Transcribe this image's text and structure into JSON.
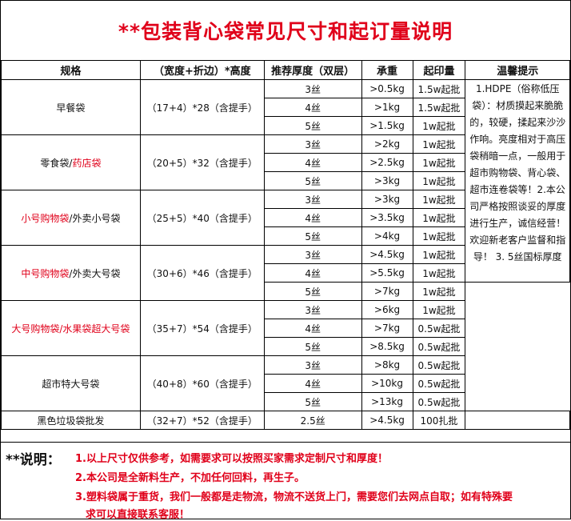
{
  "title": "**包装背心袋常见尺寸和起订量说明",
  "headers": [
    "规格",
    "（宽度+折边）*高度",
    "推荐厚度（双层）",
    "承重",
    "起印量",
    "温馨提示"
  ],
  "groups": [
    {
      "name": "早餐袋",
      "name_red": "",
      "name_tail": "",
      "size": "（17+4）*28（含提手）",
      "rows": [
        [
          "3丝",
          ">0.5kg",
          "1.5w起批"
        ],
        [
          "4丝",
          ">1kg",
          "1.5w起批"
        ],
        [
          "5丝",
          ">1.5kg",
          "1w起批"
        ]
      ]
    },
    {
      "name": "零食袋/",
      "name_red": "药店袋",
      "name_tail": "",
      "size": "（20+5）*32（含提手）",
      "rows": [
        [
          "3丝",
          ">2kg",
          "1w起批"
        ],
        [
          "4丝",
          ">2.5kg",
          "1w起批"
        ],
        [
          "5丝",
          ">3kg",
          "1w起批"
        ]
      ]
    },
    {
      "name": "",
      "name_red": "小号购物袋",
      "name_tail": "/外卖小号袋",
      "size": "（25+5）*40（含提手）",
      "rows": [
        [
          "3丝",
          ">3kg",
          "1w起批"
        ],
        [
          "4丝",
          ">3.5kg",
          "1w起批"
        ],
        [
          "5丝",
          ">4kg",
          "1w起批"
        ]
      ]
    },
    {
      "name": "",
      "name_red": "中号购物袋",
      "name_tail": "/外卖大号袋",
      "size": "（30+6）*46（含提手）",
      "rows": [
        [
          "3丝",
          ">4.5kg",
          "1w起批"
        ],
        [
          "4丝",
          ">5.5kg",
          "1w起批"
        ],
        [
          "5丝",
          ">7kg",
          "1w起批"
        ]
      ]
    },
    {
      "name": "",
      "name_red": "大号购物袋/水果袋超大号袋",
      "name_tail": "",
      "size": "（35+7）*54（含提手）",
      "rows": [
        [
          "3丝",
          ">6kg",
          "1w起批"
        ],
        [
          "4丝",
          ">7kg",
          "0.5w起批"
        ],
        [
          "5丝",
          ">8.5kg",
          "0.5w起批"
        ]
      ]
    },
    {
      "name": "超市特大号袋",
      "name_red": "",
      "name_tail": "",
      "size": "（40+8）*60（含提手）",
      "rows": [
        [
          "3丝",
          ">8kg",
          "0.5w起批"
        ],
        [
          "4丝",
          ">10kg",
          "0.5w起批"
        ],
        [
          "5丝",
          ">13kg",
          "0.5w起批"
        ]
      ]
    }
  ],
  "last_row": {
    "name": "黑色垃圾袋批发",
    "size": "（32+7）*52（含提手）",
    "thickness": "2.5丝",
    "load": ">4.5kg",
    "moq": "100扎批"
  },
  "tip": "1.HDPE（俗称低压袋）：材质摸起来脆脆的，较硬，揉起来沙沙作响。亮度相对于高压袋稍暗一点，一般用于超市购物袋、背心袋、超市连卷袋等！2.本公司严格按照谈妥的厚度进行生产，诚信经营！欢迎新老客户监督和指导！ 3. 5丝国标厚度",
  "notes": {
    "label": "**说明：",
    "n1": "1.以上尺寸仅供参考，如需要求可以按照买家需求定制尺寸和厚度！",
    "n2": "2.本公司是全新料生产，不加任何回料，再生子。",
    "n3a": "3.塑料袋属于重货，我们一般都是走物流，物流不送货上门，需要您们去网点自取；如有特殊要",
    "n3b": "求可以直接联系客服！"
  }
}
